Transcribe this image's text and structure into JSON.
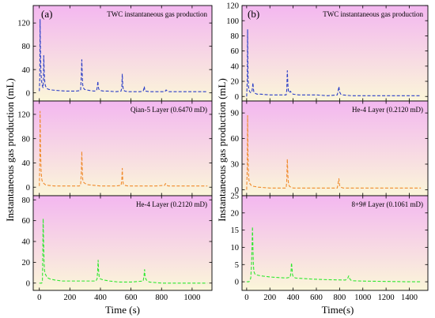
{
  "figure": {
    "panel_a_letter": "(a)",
    "panel_b_letter": "(b)",
    "ylabel_left": "Instantaneous gas production (mL)",
    "ylabel_right": "Instantaneous gas production (mL)",
    "xlabel_left": "Time (s)",
    "xlabel_right": "Time(s)",
    "background_gradient": {
      "top": "#f3b7f0",
      "bottom": "#fbf6d9"
    }
  },
  "chart_data": [
    {
      "type": "line",
      "panel": "a",
      "row": 0,
      "title": "TWC instantaneous gas production",
      "color": "#2b3fc7",
      "xlim": [
        -40,
        1130
      ],
      "ylim": [
        -14,
        150
      ],
      "yticks": [
        0,
        40,
        80,
        120
      ],
      "ytick_labels": [
        "0",
        "40",
        "80",
        "120"
      ],
      "x": [
        0,
        3,
        5,
        7,
        10,
        14,
        18,
        22,
        25,
        27,
        29,
        32,
        36,
        40,
        48,
        60,
        80,
        120,
        180,
        240,
        270,
        275,
        278,
        281,
        284,
        288,
        295,
        310,
        330,
        360,
        375,
        380,
        383,
        386,
        390,
        400,
        420,
        450,
        500,
        535,
        540,
        543,
        546,
        550,
        560,
        580,
        620,
        660,
        680,
        684,
        687,
        690,
        695,
        720,
        760,
        800,
        820,
        825,
        830,
        838,
        850,
        900,
        1000,
        1100
      ],
      "y": [
        3,
        25,
        126,
        80,
        40,
        22,
        14,
        10,
        9,
        25,
        64,
        35,
        18,
        12,
        8,
        6,
        5,
        4,
        3,
        3,
        4,
        30,
        57,
        30,
        14,
        9,
        6,
        5,
        4,
        3,
        4,
        11,
        20,
        10,
        6,
        4,
        3,
        3,
        2,
        3,
        10,
        32,
        14,
        5,
        3,
        2,
        2,
        2,
        3,
        7,
        11,
        5,
        3,
        2,
        2,
        2,
        2,
        3,
        5,
        3,
        2,
        2,
        2,
        2
      ]
    },
    {
      "type": "line",
      "panel": "a",
      "row": 1,
      "title": "Qian-5 Layer (0.6470 mD)",
      "color": "#f08a2a",
      "xlim": [
        -40,
        1130
      ],
      "ylim": [
        -14,
        142
      ],
      "yticks": [
        0,
        40,
        80,
        120
      ],
      "ytick_labels": [
        "0",
        "40",
        "80",
        "120"
      ],
      "x": [
        0,
        3,
        5,
        8,
        12,
        16,
        20,
        30,
        40,
        60,
        100,
        150,
        200,
        260,
        270,
        275,
        278,
        281,
        284,
        290,
        300,
        320,
        360,
        400,
        450,
        500,
        535,
        540,
        543,
        546,
        550,
        560,
        580,
        640,
        700,
        760,
        820,
        826,
        830,
        835,
        845,
        900,
        1000,
        1100
      ],
      "y": [
        2,
        40,
        125,
        60,
        25,
        13,
        9,
        6,
        4,
        3,
        2,
        2,
        2,
        2,
        3,
        25,
        59,
        28,
        13,
        8,
        6,
        4,
        3,
        2,
        2,
        2,
        3,
        12,
        31,
        12,
        5,
        3,
        2,
        2,
        2,
        2,
        3,
        6,
        5,
        3,
        2,
        2,
        2,
        2
      ]
    },
    {
      "type": "line",
      "panel": "a",
      "row": 2,
      "title": "He-4 Layer (0.2120 mD)",
      "color": "#2ee82e",
      "xlim": [
        -40,
        1130
      ],
      "ylim": [
        -7,
        84
      ],
      "yticks": [
        0,
        20,
        40,
        60,
        80
      ],
      "ytick_labels": [
        "0",
        "20",
        "40",
        "60",
        "80"
      ],
      "x": [
        0,
        15,
        20,
        22,
        25,
        28,
        31,
        34,
        38,
        45,
        55,
        70,
        100,
        150,
        200,
        260,
        320,
        370,
        378,
        382,
        385,
        388,
        392,
        400,
        420,
        460,
        520,
        600,
        680,
        686,
        689,
        692,
        700,
        720,
        800,
        900,
        1000,
        1100
      ],
      "y": [
        0,
        0,
        1,
        20,
        62,
        40,
        20,
        12,
        9,
        7,
        5,
        4,
        3,
        2,
        2,
        2,
        2,
        2,
        4,
        12,
        22,
        12,
        6,
        4,
        3,
        2,
        1,
        1,
        2,
        8,
        13,
        6,
        3,
        1,
        0,
        0,
        0,
        0
      ]
    },
    {
      "type": "line",
      "panel": "b",
      "row": 0,
      "title": "TWC instantaneous gas production",
      "color": "#2b3fc7",
      "xlim": [
        -40,
        1560
      ],
      "ylim": [
        -6,
        120
      ],
      "yticks": [
        0,
        20,
        40,
        60,
        80,
        100,
        120
      ],
      "ytick_labels": [
        "0",
        "20",
        "40",
        "60",
        "80",
        "100",
        "120"
      ],
      "x": [
        0,
        5,
        8,
        10,
        12,
        15,
        18,
        22,
        28,
        35,
        45,
        50,
        54,
        58,
        62,
        66,
        75,
        90,
        120,
        200,
        300,
        340,
        345,
        350,
        355,
        360,
        368,
        375,
        385,
        400,
        450,
        500,
        600,
        700,
        780,
        788,
        794,
        800,
        810,
        830,
        900,
        1000,
        1200,
        1400,
        1500
      ],
      "y": [
        0,
        20,
        88,
        50,
        25,
        15,
        10,
        8,
        6,
        5,
        6,
        12,
        18,
        10,
        6,
        5,
        4,
        3,
        3,
        2,
        2,
        2,
        8,
        34,
        15,
        6,
        5,
        7,
        5,
        3,
        2,
        2,
        2,
        1,
        2,
        8,
        13,
        6,
        3,
        2,
        1,
        1,
        1,
        1,
        1
      ]
    },
    {
      "type": "line",
      "panel": "b",
      "row": 1,
      "title": "He-4 Layer (0.2120 mD)",
      "color": "#f08a2a",
      "xlim": [
        -40,
        1560
      ],
      "ylim": [
        -7,
        104
      ],
      "yticks": [
        0,
        30,
        60,
        90
      ],
      "ytick_labels": [
        "0",
        "30",
        "60",
        "90"
      ],
      "x": [
        0,
        5,
        8,
        11,
        15,
        20,
        28,
        40,
        60,
        100,
        200,
        300,
        340,
        345,
        350,
        355,
        360,
        368,
        380,
        400,
        450,
        550,
        700,
        780,
        788,
        794,
        800,
        810,
        830,
        900,
        1000,
        1200,
        1400,
        1500
      ],
      "y": [
        0,
        25,
        87,
        45,
        20,
        11,
        7,
        5,
        4,
        3,
        2,
        2,
        2,
        10,
        36,
        16,
        7,
        4,
        3,
        2,
        2,
        2,
        2,
        2,
        8,
        13,
        5,
        3,
        2,
        2,
        2,
        2,
        2,
        2
      ]
    },
    {
      "type": "line",
      "panel": "b",
      "row": 2,
      "title": "8+9# Layer (0.1061 mD)",
      "color": "#2ee82e",
      "xlim": [
        -40,
        1560
      ],
      "ylim": [
        -2.5,
        25
      ],
      "yticks": [
        0,
        5,
        10,
        15,
        20,
        25
      ],
      "ytick_labels": [
        "0",
        "5",
        "10",
        "15",
        "20",
        "25"
      ],
      "x": [
        0,
        20,
        35,
        42,
        47,
        50,
        54,
        58,
        62,
        70,
        85,
        110,
        150,
        200,
        280,
        340,
        375,
        382,
        386,
        390,
        395,
        402,
        420,
        460,
        550,
        700,
        850,
        870,
        878,
        886,
        895,
        920,
        1000,
        1200,
        1400,
        1500
      ],
      "y": [
        0,
        0,
        1,
        5,
        11,
        16,
        10,
        5,
        3,
        2.3,
        2,
        1.8,
        1.6,
        1.4,
        1.2,
        1.1,
        1.3,
        3,
        5.5,
        4,
        2,
        1.4,
        1.1,
        1,
        0.8,
        0.6,
        0.5,
        1,
        1.7,
        1,
        0.5,
        0.3,
        0.2,
        0.1,
        0,
        0
      ]
    }
  ]
}
